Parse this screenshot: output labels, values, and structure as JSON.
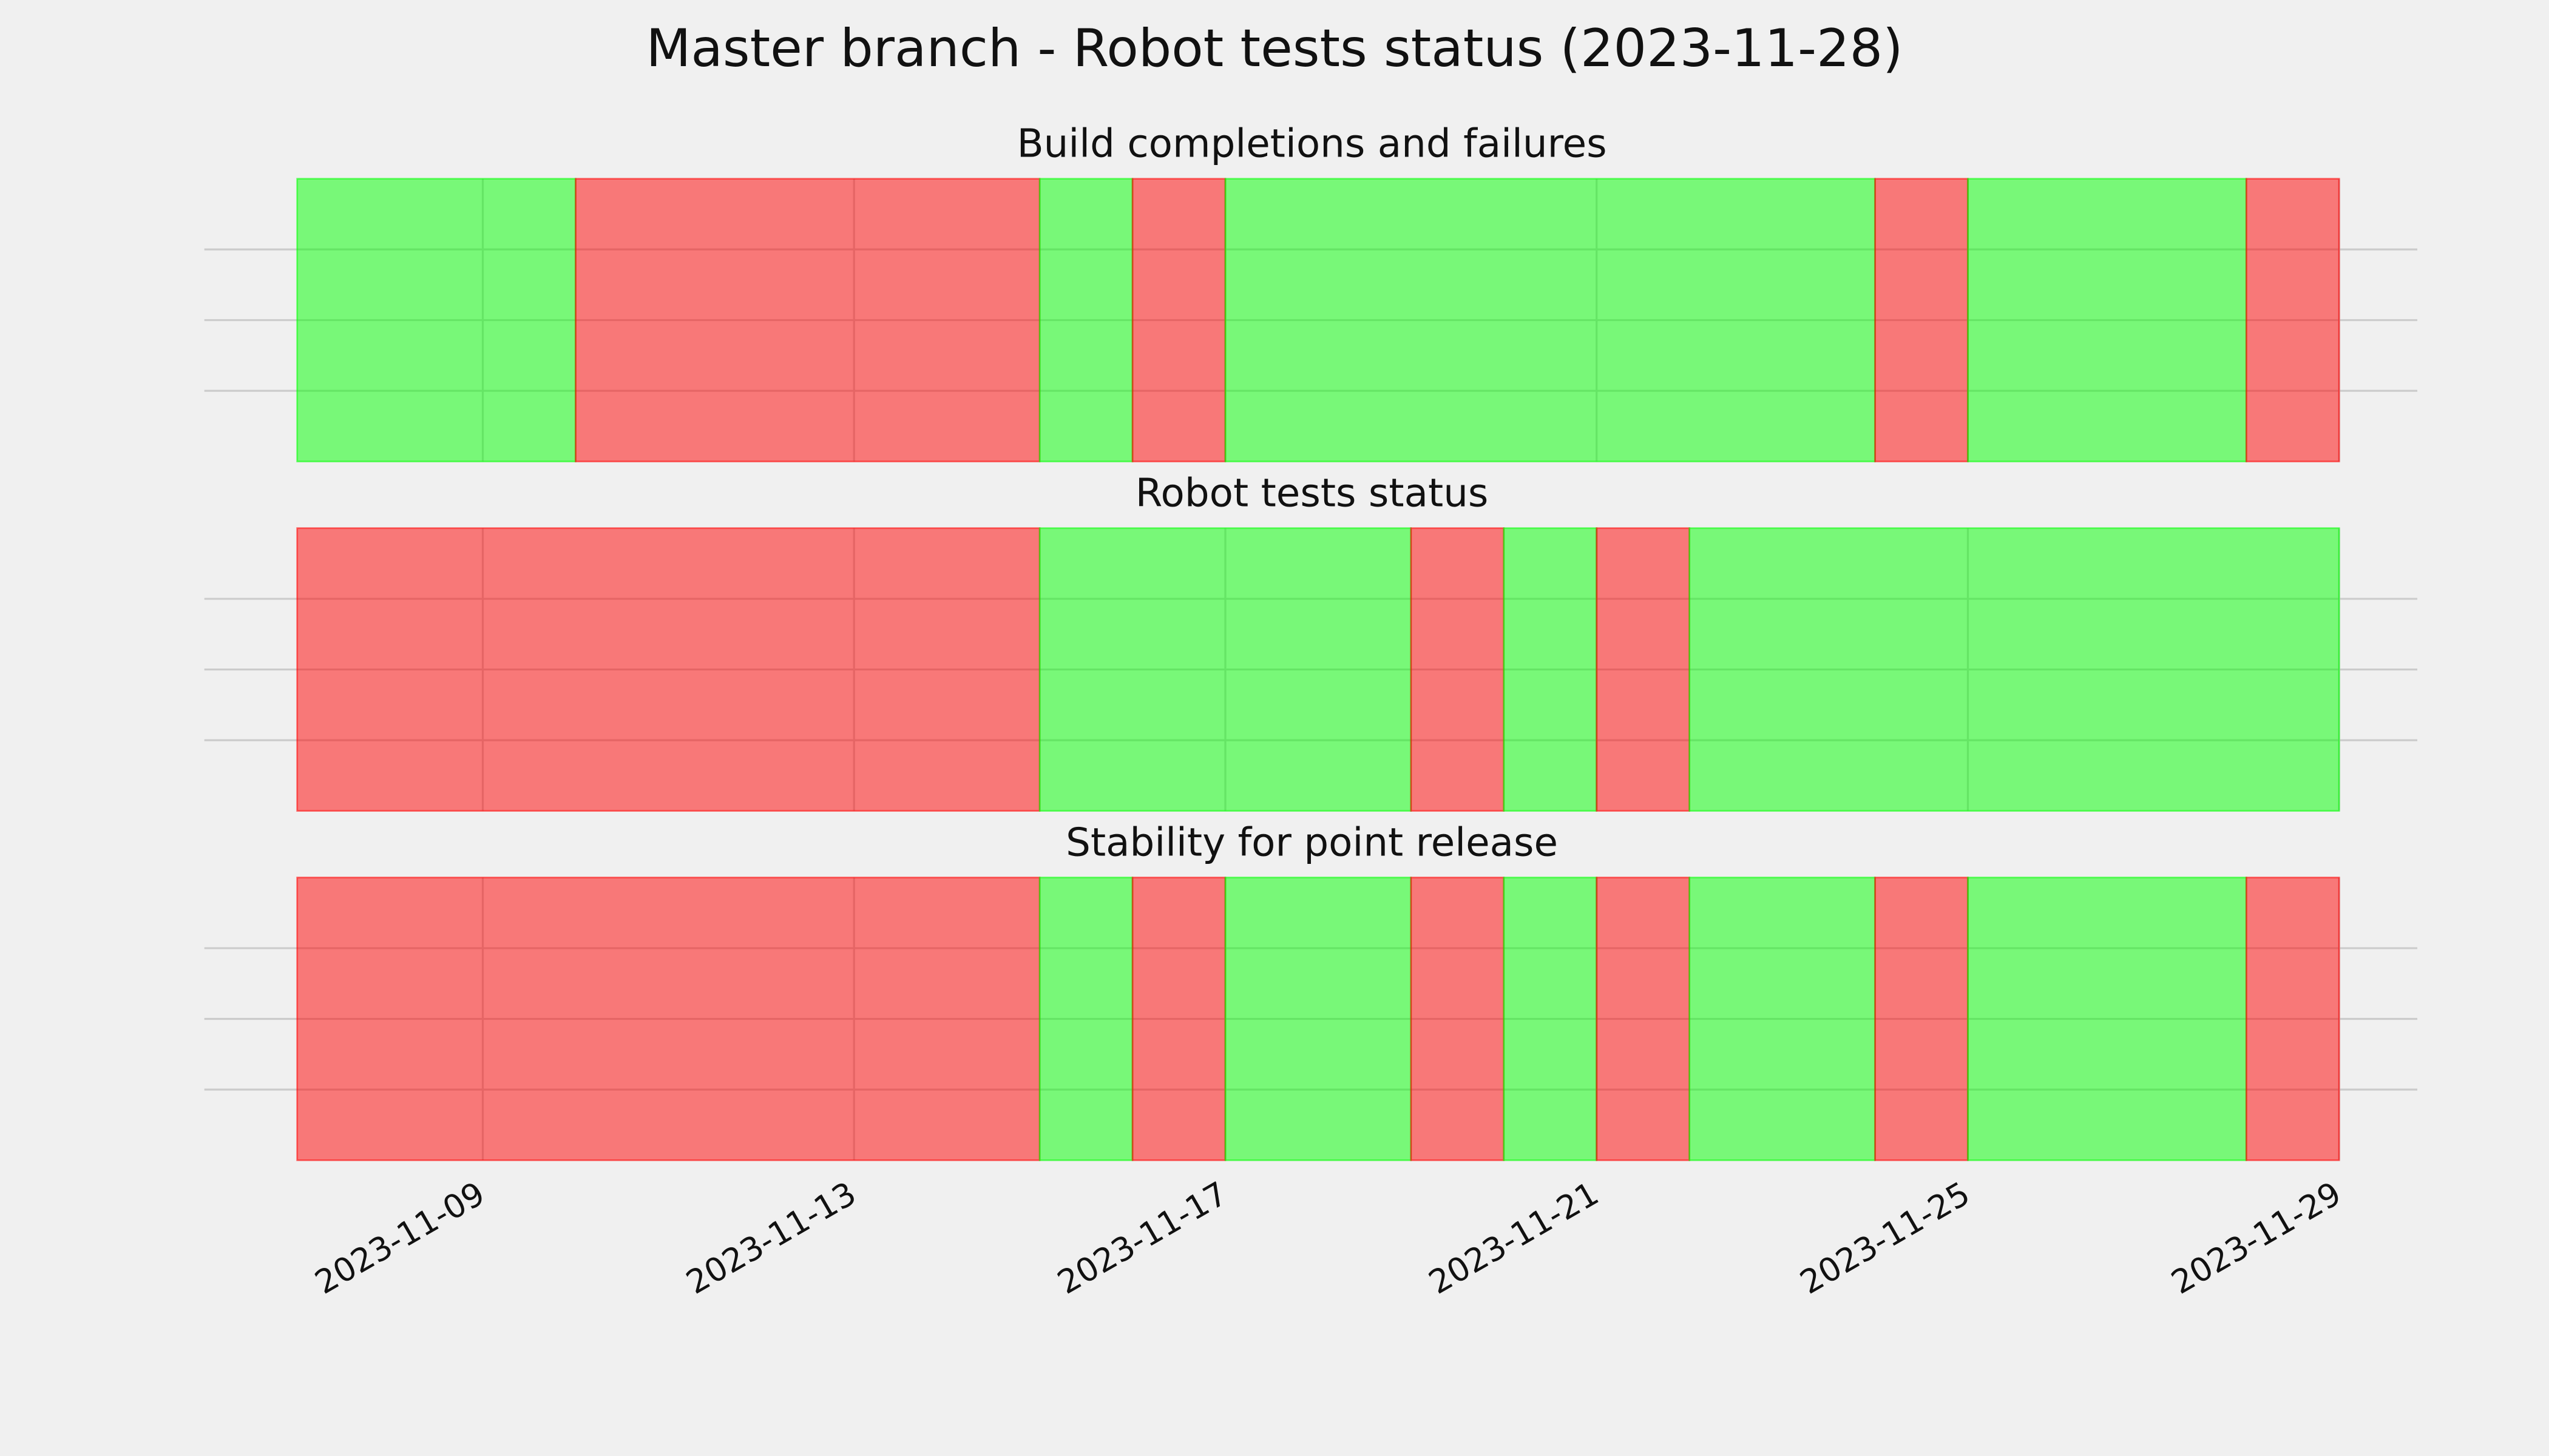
{
  "title": "Master branch - Robot tests status (2023-11-28)",
  "chart_data": [
    {
      "type": "span",
      "title": "Build completions and failures",
      "x": [
        "2023-11-07",
        "2023-11-10",
        "2023-11-15",
        "2023-11-16",
        "2023-11-17",
        "2023-11-24",
        "2023-11-25",
        "2023-11-28",
        "2023-11-29"
      ],
      "colors": [
        "#00ff00",
        "#ff0000",
        "#00ff00",
        "#ff0000",
        "#00ff00",
        "#ff0000",
        "#00ff00",
        "#ff0000"
      ],
      "xlim": [
        "2023-11-06",
        "2023-11-30"
      ],
      "xticks": [
        "2023-11-09",
        "2023-11-13",
        "2023-11-17",
        "2023-11-21",
        "2023-11-25",
        "2023-11-29"
      ],
      "ylim": [
        0,
        1
      ],
      "yticks": [
        0.25,
        0.5,
        0.75
      ],
      "grid": true
    },
    {
      "type": "span",
      "title": "Robot tests status",
      "x": [
        "2023-11-07",
        "2023-11-15",
        "2023-11-19",
        "2023-11-20",
        "2023-11-21",
        "2023-11-22",
        "2023-11-29"
      ],
      "colors": [
        "#ff0000",
        "#00ff00",
        "#ff0000",
        "#00ff00",
        "#ff0000",
        "#00ff00"
      ],
      "xlim": [
        "2023-11-06",
        "2023-11-30"
      ],
      "xticks": [
        "2023-11-09",
        "2023-11-13",
        "2023-11-17",
        "2023-11-21",
        "2023-11-25",
        "2023-11-29"
      ],
      "ylim": [
        0,
        1
      ],
      "yticks": [
        0.25,
        0.5,
        0.75
      ],
      "grid": true
    },
    {
      "type": "span",
      "title": "Stability for point release",
      "x": [
        "2023-11-07",
        "2023-11-15",
        "2023-11-16",
        "2023-11-17",
        "2023-11-19",
        "2023-11-20",
        "2023-11-21",
        "2023-11-22",
        "2023-11-24",
        "2023-11-25",
        "2023-11-28",
        "2023-11-29"
      ],
      "colors": [
        "#ff0000",
        "#00ff00",
        "#ff0000",
        "#00ff00",
        "#ff0000",
        "#00ff00",
        "#ff0000",
        "#00ff00",
        "#ff0000",
        "#00ff00",
        "#ff0000"
      ],
      "xlim": [
        "2023-11-06",
        "2023-11-30"
      ],
      "xticks": [
        "2023-11-09",
        "2023-11-13",
        "2023-11-17",
        "2023-11-21",
        "2023-11-25",
        "2023-11-29"
      ],
      "ylim": [
        0,
        1
      ],
      "yticks": [
        0.25,
        0.5,
        0.75
      ],
      "grid": true,
      "tick_labels": true
    }
  ]
}
